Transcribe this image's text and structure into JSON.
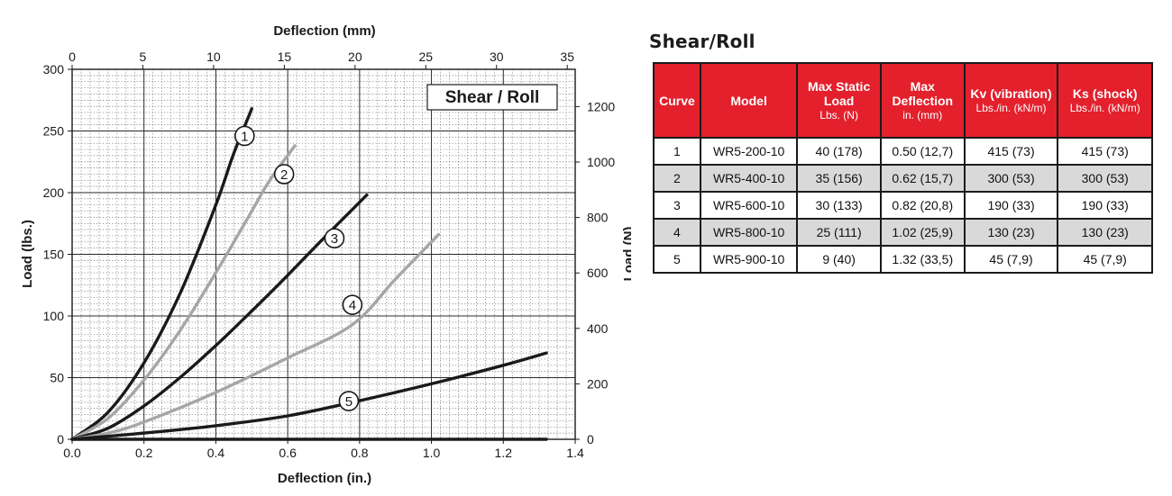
{
  "chart_data": {
    "type": "line",
    "title": "Shear / Roll",
    "xlabel": "Deflection (in.)",
    "xlabel_top": "Deflection (mm)",
    "ylabel": "Load (lbs.)",
    "ylabel_right": "Load (N)",
    "xlim": [
      0,
      1.4
    ],
    "ylim": [
      0,
      300
    ],
    "xlim_top": [
      0,
      35.56
    ],
    "ylim_right": [
      0,
      1334.5
    ],
    "x_ticks": [
      "0.0",
      "0.2",
      "0.4",
      "0.6",
      "0.8",
      "1.0",
      "1.2",
      "1.4"
    ],
    "y_ticks": [
      "0",
      "50",
      "100",
      "150",
      "200",
      "250",
      "300"
    ],
    "x_top_ticks": [
      "0",
      "5",
      "10",
      "15",
      "20",
      "25",
      "30",
      "35"
    ],
    "y_right_ticks": [
      "0",
      "200",
      "400",
      "600",
      "800",
      "1000",
      "1200"
    ],
    "grid": true,
    "series": [
      {
        "name": "1",
        "color": "#1a1a1a",
        "x": [
          0,
          0.1,
          0.2,
          0.3,
          0.4,
          0.45,
          0.5
        ],
        "y": [
          0,
          22,
          62,
          118,
          190,
          232,
          268
        ],
        "label_at": [
          0.48,
          246
        ]
      },
      {
        "name": "2",
        "color": "#a6a6a6",
        "x": [
          0,
          0.1,
          0.2,
          0.3,
          0.4,
          0.5,
          0.55,
          0.62
        ],
        "y": [
          0,
          17,
          48,
          88,
          135,
          185,
          210,
          238
        ],
        "label_at": [
          0.59,
          215
        ]
      },
      {
        "name": "3",
        "color": "#1a1a1a",
        "x": [
          0,
          0.1,
          0.2,
          0.3,
          0.4,
          0.5,
          0.6,
          0.7,
          0.82
        ],
        "y": [
          0,
          9,
          27,
          50,
          76,
          104,
          133,
          163,
          198
        ],
        "label_at": [
          0.73,
          163
        ]
      },
      {
        "name": "4",
        "color": "#a6a6a6",
        "x": [
          0,
          0.1,
          0.2,
          0.4,
          0.6,
          0.78,
          0.9,
          1.02
        ],
        "y": [
          0,
          5,
          14,
          38,
          66,
          93,
          130,
          166
        ],
        "label_at": [
          0.78,
          109
        ]
      },
      {
        "name": "5",
        "color": "#1a1a1a",
        "x": [
          0,
          0.2,
          0.4,
          0.6,
          0.78,
          1.0,
          1.2,
          1.32
        ],
        "y": [
          0,
          5,
          11,
          19,
          30,
          45,
          60,
          70
        ],
        "label_at": [
          0.77,
          31
        ]
      },
      {
        "name": "",
        "color": "#1a1a1a",
        "x": [
          0,
          1.32
        ],
        "y": [
          0,
          0
        ]
      }
    ]
  },
  "table": {
    "title": "Shear/Roll",
    "headers": [
      {
        "h": "Curve",
        "u": ""
      },
      {
        "h": "Model",
        "u": ""
      },
      {
        "h": "Max Static Load",
        "u": "Lbs. (N)"
      },
      {
        "h": "Max Deflection",
        "u": "in. (mm)"
      },
      {
        "h": "Kv (vibration)",
        "u": "Lbs./in. (kN/m)"
      },
      {
        "h": "Ks (shock)",
        "u": "Lbs./in. (kN/m)"
      }
    ],
    "rows": [
      [
        "1",
        "WR5-200-10",
        "40 (178)",
        "0.50 (12,7)",
        "415 (73)",
        "415 (73)"
      ],
      [
        "2",
        "WR5-400-10",
        "35 (156)",
        "0.62 (15,7)",
        "300 (53)",
        "300 (53)"
      ],
      [
        "3",
        "WR5-600-10",
        "30 (133)",
        "0.82 (20,8)",
        "190 (33)",
        "190 (33)"
      ],
      [
        "4",
        "WR5-800-10",
        "25 (111)",
        "1.02 (25,9)",
        "130 (23)",
        "130 (23)"
      ],
      [
        "5",
        "WR5-900-10",
        "9 (40)",
        "1.32 (33,5)",
        "45 (7,9)",
        "45 (7,9)"
      ]
    ]
  }
}
